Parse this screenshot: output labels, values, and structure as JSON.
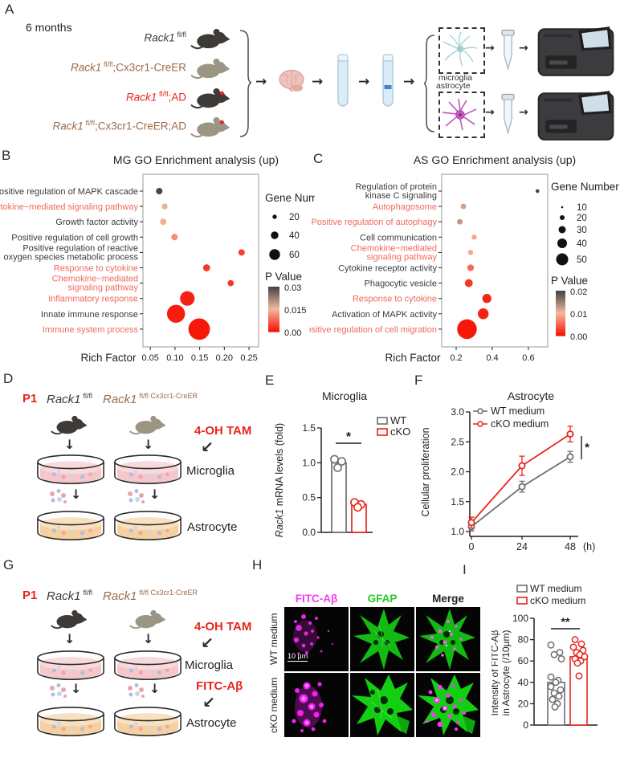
{
  "colors": {
    "accent_red": "#e8251d",
    "brown": "#9c6b49",
    "gray_series": "#6d6e71",
    "magenta": "#f23cf2",
    "green": "#27c927",
    "dish_pink": "#f5c6ca",
    "dish_orange": "#f6d09e",
    "mouse_black": "#3d3a38",
    "mouse_gray": "#9b9584"
  },
  "panelA": {
    "label": "A",
    "age_label": "6 months",
    "genotypes": [
      {
        "gene": "Rack1",
        "sup": "fl/fl",
        "rest": ""
      },
      {
        "gene": "Rack1",
        "sup": "fl/fl",
        "rest": ";Cx3cr1-CreER"
      },
      {
        "gene": "Rack1",
        "sup": "fl/fl",
        "rest": ";AD"
      },
      {
        "gene": "Rack1",
        "sup": "fl/fl",
        "rest": ";Cx3cr1-CreER;AD"
      }
    ],
    "cell_labels": {
      "microglia": "microglia",
      "astrocyte": "astrocyte"
    }
  },
  "panelB": {
    "label": "B"
  },
  "panelC": {
    "label": "C"
  },
  "panelD": {
    "label": "D",
    "p1": "P1",
    "genotype_left": {
      "gene": "Rack1",
      "sup": "fl/fl"
    },
    "genotype_right": {
      "gene": "Rack1",
      "sup": "fl/fl Cx3cr1-CreER"
    },
    "treatment": "4-OH TAM",
    "microglia_label": "Microglia",
    "astrocyte_label": "Astrocyte"
  },
  "panelE": {
    "label": "E"
  },
  "panelF": {
    "label": "F"
  },
  "panelG": {
    "label": "G",
    "p1": "P1",
    "genotype_left": {
      "gene": "Rack1",
      "sup": "fl/fl"
    },
    "genotype_right": {
      "gene": "Rack1",
      "sup": "fl/fl Cx3cr1-CreER"
    },
    "treatment": "4-OH TAM",
    "treatment2": "FITC-Aβ",
    "microglia_label": "Microglia",
    "astrocyte_label": "Astrocyte"
  },
  "panelH": {
    "label": "H",
    "col_headers": [
      "FITC-Aβ",
      "GFAP",
      "Merge"
    ],
    "row_labels": [
      "WT medium",
      "cKO medium"
    ],
    "scale_bar": "10 μm"
  },
  "panelI": {
    "label": "I"
  },
  "chart_data": [
    {
      "panel": "B",
      "type": "scatter",
      "title": "MG GO Enrichment analysis (up)",
      "xlabel": "Rich Factor",
      "xticks": [
        "0.05",
        "0.10",
        "0.15",
        "0.20",
        "0.25"
      ],
      "xlim": [
        0.035,
        0.2695
      ],
      "legend_title": "Gene Number",
      "legend_sizes": [
        20,
        40,
        60
      ],
      "pvalue_title": "P Value",
      "pvalue_ticks": [
        "0.03",
        "0.015",
        "0.00"
      ],
      "p_max": 0.03,
      "points": [
        {
          "label": "Positive regulation of MAPK cascade",
          "label_color": "black",
          "rich_factor": 0.068,
          "gene_number": 14,
          "p": 0.03
        },
        {
          "label": "Cytokine−mediated signaling pathway",
          "label_color": "red",
          "rich_factor": 0.079,
          "gene_number": 12,
          "p": 0.016
        },
        {
          "label": "Growth factor activity",
          "label_color": "black",
          "rich_factor": 0.076,
          "gene_number": 14,
          "p": 0.014
        },
        {
          "label": "Positive regulation of cell growth",
          "label_color": "black",
          "rich_factor": 0.099,
          "gene_number": 14,
          "p": 0.011
        },
        {
          "label": "Positive regulation of reactive\noxygen species metabolic process",
          "label_color": "black",
          "rich_factor": 0.235,
          "gene_number": 14,
          "p": 0.004
        },
        {
          "label": "Response to cytokine",
          "label_color": "red",
          "rich_factor": 0.164,
          "gene_number": 16,
          "p": 0.003
        },
        {
          "label": "Chemokine−mediated\nsignaling pathway",
          "label_color": "red",
          "rich_factor": 0.213,
          "gene_number": 13,
          "p": 0.003
        },
        {
          "label": "Inflammatory response",
          "label_color": "red",
          "rich_factor": 0.125,
          "gene_number": 42,
          "p": 0.001
        },
        {
          "label": "Innate immune response",
          "label_color": "black",
          "rich_factor": 0.102,
          "gene_number": 54,
          "p": 0.0006
        },
        {
          "label": "Immune system process",
          "label_color": "red",
          "rich_factor": 0.149,
          "gene_number": 66,
          "p": 0.0002
        }
      ]
    },
    {
      "panel": "C",
      "type": "scatter",
      "title": "AS GO Enrichment analysis (up)",
      "xlabel": "Rich Factor",
      "xticks": [
        "0.2",
        "0.4",
        "0.6"
      ],
      "xlim": [
        0.12,
        0.707
      ],
      "legend_title": "Gene Number",
      "legend_sizes": [
        10,
        20,
        30,
        40,
        50
      ],
      "pvalue_title": "P Value",
      "pvalue_ticks": [
        "0.02",
        "0.01",
        "0.00"
      ],
      "p_max": 0.02,
      "points": [
        {
          "label": "Regulation of protein\nkinase C signaling",
          "label_color": "black",
          "rich_factor": 0.65,
          "gene_number": 7,
          "p": 0.02
        },
        {
          "label": "Autophagosome",
          "label_color": "red",
          "rich_factor": 0.24,
          "gene_number": 12,
          "p": 0.012
        },
        {
          "label": "Positive regulation of autophagy",
          "label_color": "red",
          "rich_factor": 0.22,
          "gene_number": 12,
          "p": 0.013
        },
        {
          "label": "Cell communication",
          "label_color": "black",
          "rich_factor": 0.3,
          "gene_number": 11,
          "p": 0.009
        },
        {
          "label": "Chemokine−mediated\nsignaling pathway",
          "label_color": "red",
          "rich_factor": 0.28,
          "gene_number": 11,
          "p": 0.009
        },
        {
          "label": "Cytokine receptor activity",
          "label_color": "black",
          "rich_factor": 0.28,
          "gene_number": 15,
          "p": 0.005
        },
        {
          "label": "Phagocytic vesicle",
          "label_color": "black",
          "rich_factor": 0.27,
          "gene_number": 19,
          "p": 0.002
        },
        {
          "label": "Response to cytokine",
          "label_color": "red",
          "rich_factor": 0.37,
          "gene_number": 22,
          "p": 0.001
        },
        {
          "label": "Activation of MAPK activity",
          "label_color": "black",
          "rich_factor": 0.35,
          "gene_number": 27,
          "p": 0.0008
        },
        {
          "label": "Positive regulation of cell migration",
          "label_color": "red",
          "rich_factor": 0.26,
          "gene_number": 52,
          "p": 0.0002
        }
      ]
    },
    {
      "panel": "E",
      "type": "bar",
      "title": "Microglia",
      "ylabel_italic": "Rack1",
      "ylabel_rest": " mRNA levels (fold)",
      "yticks": [
        "0.0",
        "0.5",
        "1.0",
        "1.5"
      ],
      "ylim": [
        0,
        1.5
      ],
      "groups": [
        {
          "name": "WT",
          "value": 1.0,
          "points": [
            1.05,
            1.02,
            0.93
          ]
        },
        {
          "name": "cKO",
          "value": 0.4,
          "points": [
            0.43,
            0.4,
            0.36
          ]
        }
      ],
      "significance": "*"
    },
    {
      "panel": "F",
      "type": "line",
      "title": "Astrocyte",
      "ylabel": "Cellular proliferation",
      "x": [
        "0",
        "24",
        "48"
      ],
      "x_unit": "(h)",
      "yticks": [
        "1.0",
        "1.5",
        "2.0",
        "2.5",
        "3.0"
      ],
      "ylim": [
        1.0,
        3.0
      ],
      "series": [
        {
          "name": "WT medium",
          "values": [
            1.08,
            1.75,
            2.25
          ],
          "err": [
            0.03,
            0.05,
            0.05
          ]
        },
        {
          "name": "cKO medium",
          "values": [
            1.15,
            2.1,
            2.63
          ],
          "err": [
            0.05,
            0.12,
            0.09
          ]
        }
      ],
      "significance": "*"
    },
    {
      "panel": "I",
      "type": "bar-scatter",
      "ylabel_line1": "Intensity of FITC-Aβ",
      "ylabel_line2": "in Astrocyte (/10μm)",
      "yticks": [
        "0",
        "20",
        "40",
        "60",
        "80",
        "100"
      ],
      "ylim": [
        0,
        100
      ],
      "legend": [
        "WT medium",
        "cKO medium"
      ],
      "groups": [
        {
          "name": "WT medium",
          "value": 40,
          "points": [
            75,
            68,
            66,
            62,
            45,
            42,
            40,
            36,
            33,
            30,
            27,
            24,
            20,
            17
          ]
        },
        {
          "name": "cKO medium",
          "value": 64,
          "points": [
            80,
            76,
            73,
            70,
            68,
            66,
            64,
            62,
            60,
            58,
            46
          ]
        }
      ],
      "significance": "**"
    }
  ]
}
